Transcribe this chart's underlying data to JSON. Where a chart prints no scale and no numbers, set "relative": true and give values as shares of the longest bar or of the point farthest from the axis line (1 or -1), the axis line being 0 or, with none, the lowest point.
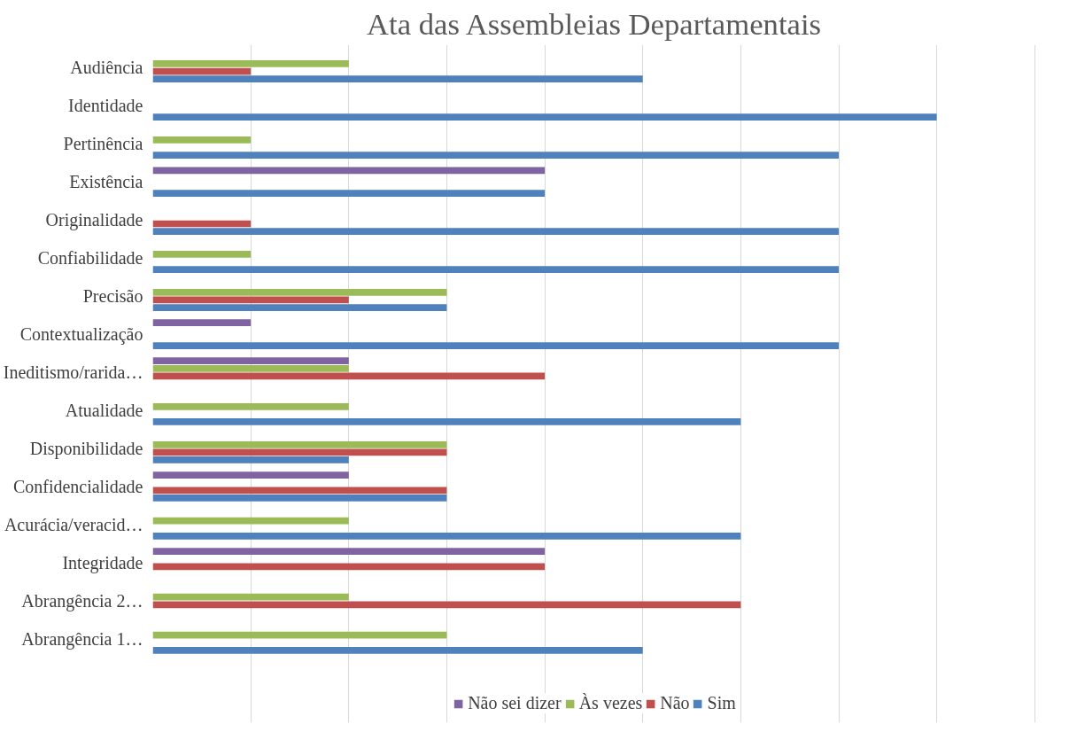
{
  "chart_data": {
    "type": "bar",
    "orientation": "horizontal",
    "relative": true,
    "title": "Ata das Assembleias Departamentais",
    "categories": [
      "Audiência",
      "Identidade",
      "Pertinência",
      "Existência",
      "Originalidade",
      "Confiabilidade",
      "Precisão",
      "Contextualização",
      "Ineditismo/rarida…",
      "Atualidade",
      "Disponibilidade",
      "Confidencialidade",
      "Acurácia/veracid…",
      "Integridade",
      "Abrangência 2…",
      "Abrangência 1…"
    ],
    "series": [
      {
        "name": "Sim",
        "color": "#4f81bd",
        "values": [
          0.625,
          1,
          0.875,
          0.5,
          0.875,
          0.875,
          0.375,
          0.875,
          0,
          0.75,
          0.25,
          0.375,
          0.75,
          0,
          0,
          0.625
        ]
      },
      {
        "name": "Não",
        "color": "#c0504d",
        "values": [
          0.125,
          0,
          0,
          0,
          0.125,
          0,
          0.25,
          0,
          0.5,
          0,
          0.375,
          0.375,
          0,
          0.5,
          0.75,
          0
        ]
      },
      {
        "name": "Às vezes",
        "color": "#9bbb59",
        "values": [
          0.25,
          0,
          0.125,
          0,
          0,
          0.125,
          0.375,
          0,
          0.25,
          0.25,
          0.375,
          0,
          0.25,
          0,
          0.25,
          0.375
        ]
      },
      {
        "name": "Não sei dizer",
        "color": "#8064a2",
        "values": [
          0,
          0,
          0,
          0.5,
          0,
          0,
          0,
          0.125,
          0.25,
          0,
          0,
          0.25,
          0,
          0.5,
          0,
          0
        ]
      }
    ],
    "grid": "x",
    "legend": "bottom"
  }
}
